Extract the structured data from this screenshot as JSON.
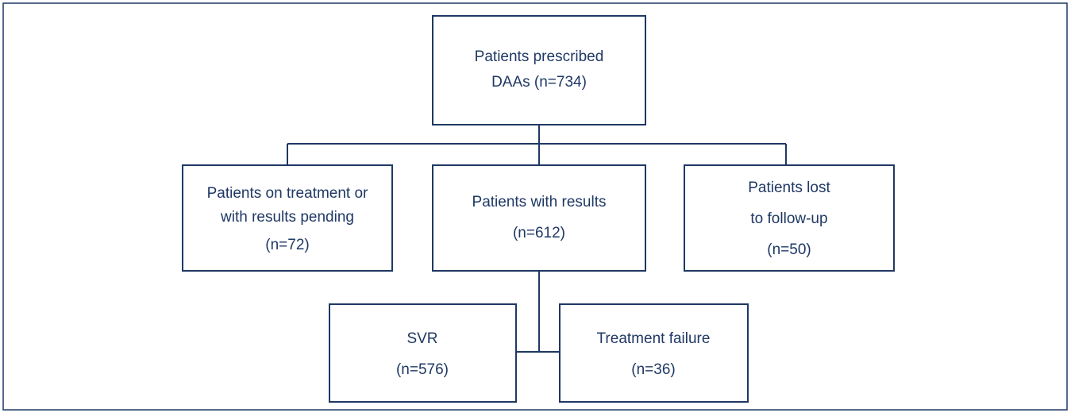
{
  "nodes": [
    {
      "lines": [
        "Patients prescribed",
        "DAAs (n=734)"
      ]
    },
    {
      "lines": [
        "Patients on treatment or",
        "with results pending",
        "(n=72)"
      ]
    },
    {
      "lines": [
        "Patients with results",
        "(n=612)"
      ]
    },
    {
      "lines": [
        "Patients lost",
        "to follow-up",
        "(n=50)"
      ]
    },
    {
      "lines": [
        "SVR",
        "(n=576)"
      ]
    },
    {
      "lines": [
        "Treatment failure",
        "(n=36)"
      ]
    }
  ]
}
